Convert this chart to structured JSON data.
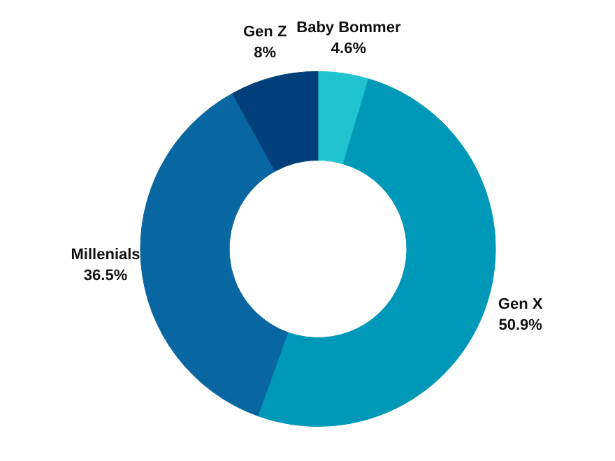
{
  "chart_data": {
    "type": "donut",
    "categories": [
      "Baby Bommer",
      "Gen X",
      "Millenials",
      "Gen Z"
    ],
    "values": [
      4.6,
      50.9,
      36.5,
      8
    ],
    "value_labels": [
      "4.6%",
      "50.9%",
      "36.5%",
      "8%"
    ],
    "colors": [
      "#20c4cf",
      "#0098b8",
      "#0866a0",
      "#003f7a"
    ],
    "legend": false
  }
}
